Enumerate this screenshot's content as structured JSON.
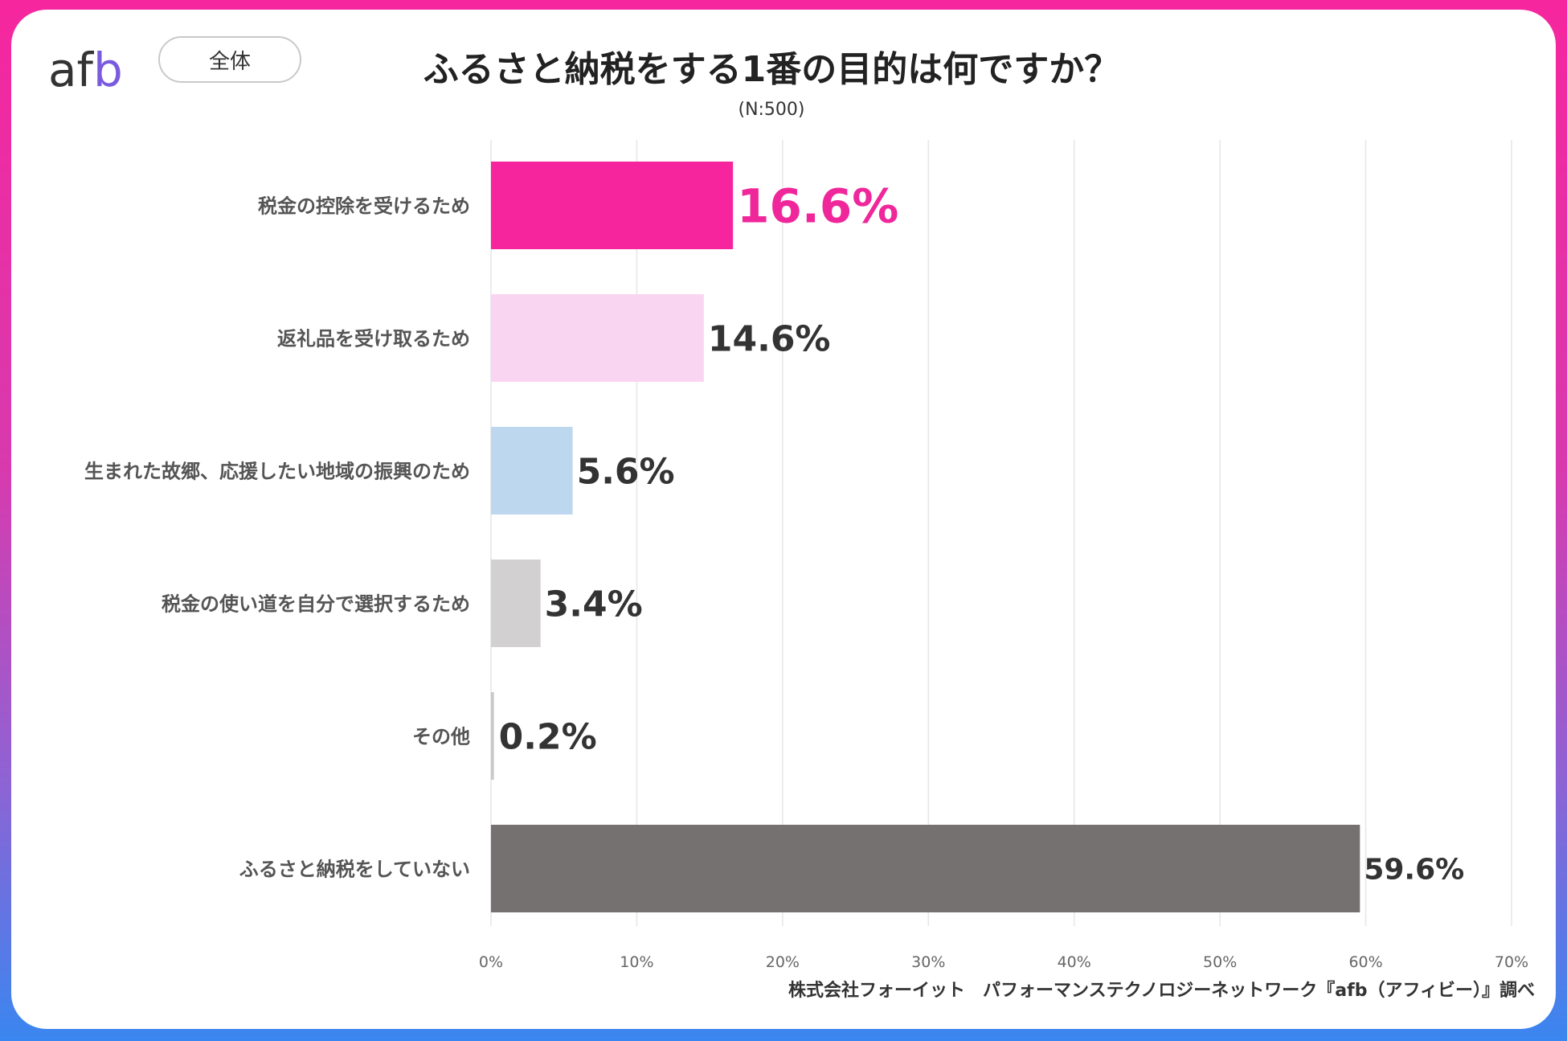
{
  "header": {
    "logo": {
      "a": "a",
      "f": "f",
      "b": "b"
    },
    "segment": "全体",
    "title": "ふるさと納税をする1番の目的は何ですか？",
    "subtitle": "(N:500)"
  },
  "footer": {
    "credit": "株式会社フォーイット　パフォーマンステクノロジーネットワーク『afb（アフィビー）』調べ"
  },
  "colors": {
    "logo_accent": "#7a5be0",
    "highlight_label": "#f0269b",
    "value_label": "#333333",
    "grid": "#e6e6e6"
  },
  "chart_data": {
    "type": "bar",
    "orientation": "horizontal",
    "title": "ふるさと納税をする1番の目的は何ですか？",
    "subtitle": "(N:500)",
    "categories": [
      "税金の控除を受けるため",
      "返礼品を受け取るため",
      "生まれた故郷、応援したい地域の振興のため",
      "税金の使い道を自分で選択するため",
      "その他",
      "ふるさと納税をしていない"
    ],
    "values": [
      16.6,
      14.6,
      5.6,
      3.4,
      0.2,
      59.6
    ],
    "value_labels": [
      "16.6%",
      "14.6%",
      "5.6%",
      "3.4%",
      "0.2%",
      "59.6%"
    ],
    "bar_colors": [
      "#f7259d",
      "#fad5f2",
      "#bdd7ee",
      "#d3d0d1",
      "#c8c8c8",
      "#767171"
    ],
    "xlim": [
      0,
      70
    ],
    "xticks": [
      0,
      10,
      20,
      30,
      40,
      50,
      60,
      70
    ],
    "xtick_labels": [
      "0%",
      "10%",
      "20%",
      "30%",
      "40%",
      "50%",
      "60%",
      "70%"
    ],
    "grid": true,
    "highlight_index": 0
  }
}
